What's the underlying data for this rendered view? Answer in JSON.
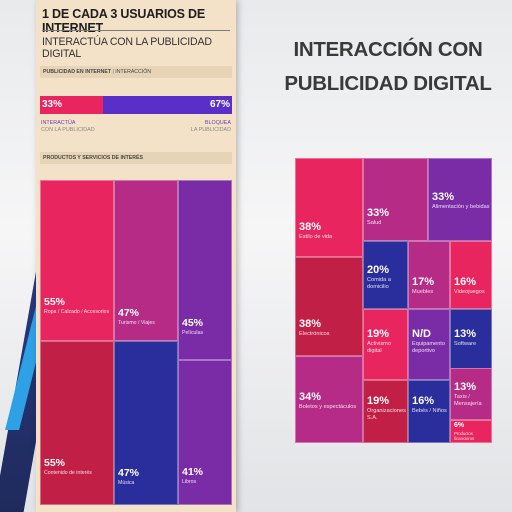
{
  "poster": {
    "title": "1 DE CADA 3 USUARIOS DE INTERNET",
    "subtitle": "INTERACTÚA CON LA PUBLICIDAD DIGITAL",
    "section1_head": "PUBLICIDAD EN INTERNET",
    "section1_sep": " | ",
    "section1_tail": "INTERACCIÓN",
    "section2_head": "PRODUCTOS Y SERVICIOS DE INTERÉS"
  },
  "right": {
    "title_line1": "INTERACCIÓN CON",
    "title_line2": "PUBLICIDAD DIGITAL"
  },
  "colors": {
    "pink": "#e8255f",
    "magenta": "#b52b86",
    "purple": "#7a2ca6",
    "navy": "#2a2d9c",
    "crimson": "#c11f45",
    "blue_violet": "#5a2fc8"
  },
  "chart_data": [
    {
      "type": "bar",
      "orientation": "stacked-horizontal",
      "categories": [
        "Interactúa con la publicidad",
        "Bloquea la publicidad"
      ],
      "series": [
        {
          "values": [
            33,
            67
          ]
        }
      ],
      "labels": [
        {
          "pct": "33%",
          "line1": "INTERACTÚA",
          "line2": "CON LA PUBLICIDAD"
        },
        {
          "pct": "67%",
          "line1": "BLOQUEA",
          "line2": "LA PUBLICIDAD"
        }
      ]
    },
    {
      "type": "table",
      "layout": "treemap",
      "tiles": [
        {
          "value": 55,
          "pct": "55%",
          "label": "Ropa / Calzado / Accesorios",
          "color": "#e8255f"
        },
        {
          "value": 47,
          "pct": "47%",
          "label": "Turismo / Viajes",
          "color": "#b52b86"
        },
        {
          "value": 45,
          "pct": "45%",
          "label": "Películas",
          "color": "#7a2ca6"
        },
        {
          "value": 55,
          "pct": "55%",
          "label": "Contenido de interés",
          "color": "#c11f45"
        },
        {
          "value": 47,
          "pct": "47%",
          "label": "Música",
          "color": "#2a2d9c"
        },
        {
          "value": 41,
          "pct": "41%",
          "label": "Libros",
          "color": "#7a2ca6"
        }
      ]
    },
    {
      "type": "table",
      "layout": "treemap",
      "tiles": [
        {
          "value": 38,
          "pct": "38%",
          "label": "Estilo de vida",
          "color": "#e8255f"
        },
        {
          "value": 33,
          "pct": "33%",
          "label": "Salud",
          "color": "#b52b86"
        },
        {
          "value": 33,
          "pct": "33%",
          "label": "Alimentación y bebidas",
          "color": "#7a2ca6"
        },
        {
          "value": 38,
          "pct": "38%",
          "label": "Electrónicos",
          "color": "#c11f45"
        },
        {
          "value": 20,
          "pct": "20%",
          "label": "Comida a domicilio",
          "color": "#2a2d9c"
        },
        {
          "value": 17,
          "pct": "17%",
          "label": "Muebles",
          "color": "#b52b86"
        },
        {
          "value": 16,
          "pct": "16%",
          "label": "Videojuegos",
          "color": "#e8255f"
        },
        {
          "value": 19,
          "pct": "19%",
          "label": "Activismo digital",
          "color": "#e8255f"
        },
        {
          "value": null,
          "pct": "N/D",
          "label": "Equipamento deportivo",
          "color": "#7a2ca6"
        },
        {
          "value": 13,
          "pct": "13%",
          "label": "Software",
          "color": "#2a2d9c"
        },
        {
          "value": 34,
          "pct": "34%",
          "label": "Boletos y espectáculos",
          "color": "#b52b86"
        },
        {
          "value": 19,
          "pct": "19%",
          "label": "Organizaciones S.A.",
          "color": "#c11f45"
        },
        {
          "value": 16,
          "pct": "16%",
          "label": "Bebés / Niños",
          "color": "#2a2d9c"
        },
        {
          "value": 13,
          "pct": "13%",
          "label": "Taxis / Mensajería",
          "color": "#b52b86"
        },
        {
          "value": 6,
          "pct": "6%",
          "label": "Productos financieros",
          "color": "#e8255f"
        }
      ]
    }
  ]
}
